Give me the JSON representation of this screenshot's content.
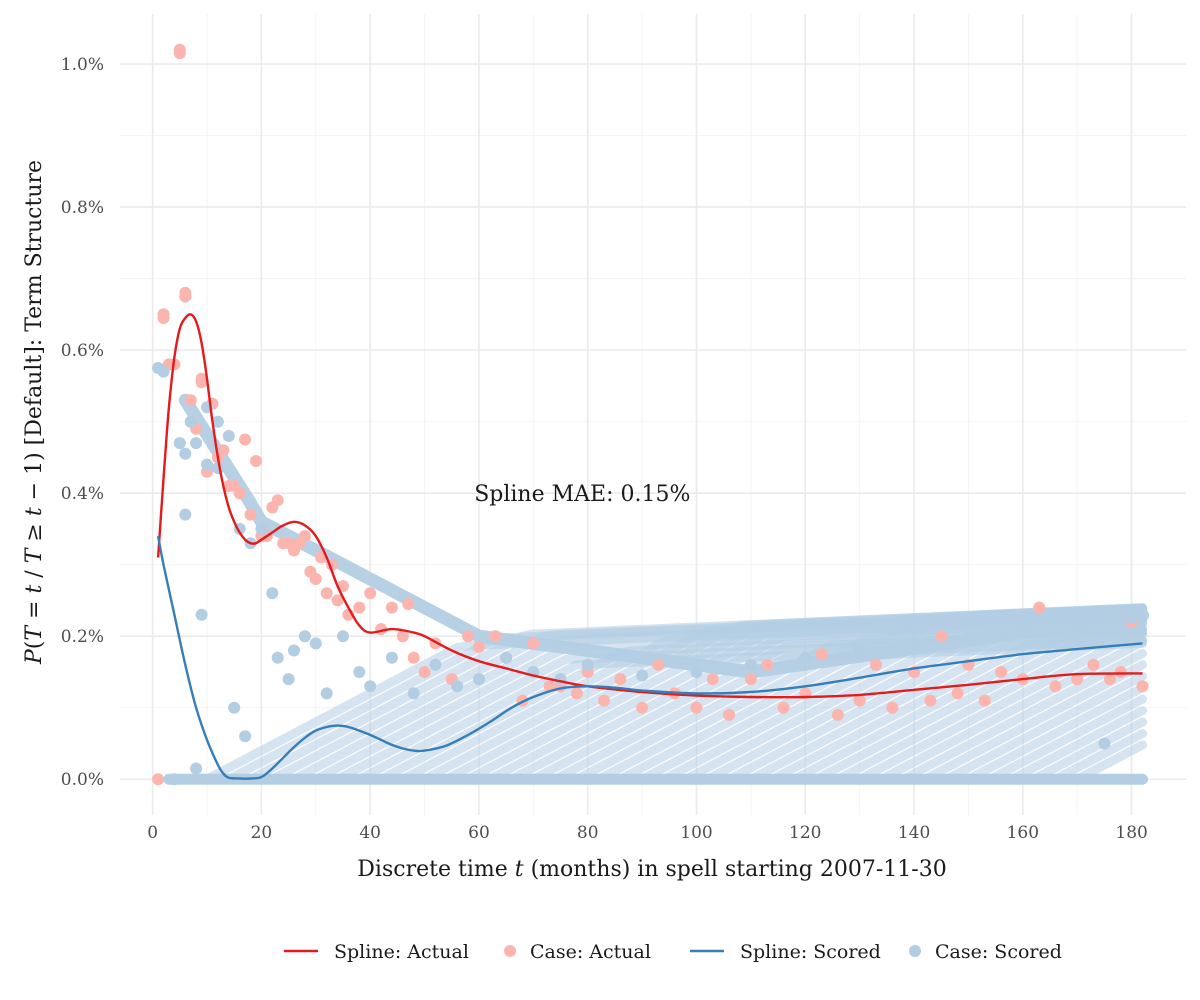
{
  "chart_data": {
    "type": "scatter",
    "xlabel": "Discrete time t (months) in spell starting 2007-11-30",
    "xlabel_parts": [
      "Discrete time ",
      "t",
      " (months) in spell starting 2007-11-30"
    ],
    "ylabel": "P(T = t / T ≥ t − 1) [Default]: Term Structure",
    "ylabel_parts": [
      "P",
      "(",
      "T",
      " = ",
      "t",
      " / ",
      "T",
      " ≥ ",
      "t",
      " − 1",
      ")",
      " [Default]: Term Structure"
    ],
    "annotation": {
      "text": "Spline MAE: 0.15%",
      "x": 79,
      "y": 0.4
    },
    "xlim": [
      -6,
      190
    ],
    "ylim": [
      -0.05,
      1.07
    ],
    "x_ticks": [
      0,
      20,
      40,
      60,
      80,
      100,
      120,
      140,
      160,
      180
    ],
    "x_tick_labels": [
      "0",
      "20",
      "40",
      "60",
      "80",
      "100",
      "120",
      "140",
      "160",
      "180"
    ],
    "y_ticks": [
      0.0,
      0.2,
      0.4,
      0.6,
      0.8,
      1.0
    ],
    "y_tick_labels": [
      "0.0%",
      "0.2%",
      "0.4%",
      "0.6%",
      "0.8%",
      "1.0%"
    ],
    "grid": true,
    "legend_position": "bottom",
    "colors": {
      "spline_actual": "#e41a1c",
      "case_actual": "#fbb4ae",
      "spline_scored": "#377eb8",
      "case_scored": "#b3cde3"
    },
    "legend": [
      {
        "label": "Spline: Actual",
        "kind": "line",
        "color": "#e41a1c"
      },
      {
        "label": "Case: Actual",
        "kind": "point",
        "color": "#fbb4ae"
      },
      {
        "label": "Spline: Scored",
        "kind": "line",
        "color": "#377eb8"
      },
      {
        "label": "Case: Scored",
        "kind": "point",
        "color": "#b3cde3"
      }
    ],
    "series": [
      {
        "name": "Spline: Actual",
        "kind": "line",
        "color": "#e41a1c",
        "x": [
          1,
          2,
          3,
          4,
          5,
          6,
          7,
          8,
          9,
          10,
          11,
          12,
          13,
          14,
          15,
          16,
          17,
          18,
          19,
          20,
          22,
          24,
          26,
          28,
          30,
          32,
          34,
          36,
          38,
          40,
          44,
          48,
          50,
          55,
          60,
          65,
          70,
          75,
          80,
          90,
          100,
          110,
          120,
          130,
          140,
          150,
          160,
          170,
          182
        ],
        "y": [
          0.31,
          0.42,
          0.52,
          0.59,
          0.63,
          0.645,
          0.65,
          0.64,
          0.61,
          0.56,
          0.5,
          0.45,
          0.41,
          0.38,
          0.36,
          0.345,
          0.335,
          0.33,
          0.33,
          0.335,
          0.345,
          0.355,
          0.36,
          0.355,
          0.34,
          0.31,
          0.27,
          0.24,
          0.215,
          0.205,
          0.21,
          0.205,
          0.2,
          0.18,
          0.165,
          0.155,
          0.145,
          0.137,
          0.13,
          0.122,
          0.117,
          0.115,
          0.115,
          0.118,
          0.125,
          0.132,
          0.14,
          0.147,
          0.148
        ]
      },
      {
        "name": "Spline: Scored",
        "kind": "line",
        "color": "#377eb8",
        "x": [
          1,
          2,
          4,
          6,
          8,
          10,
          12,
          13,
          14,
          16,
          18,
          20,
          22,
          24,
          26,
          28,
          30,
          32,
          34,
          36,
          38,
          40,
          42,
          44,
          46,
          48,
          50,
          54,
          58,
          62,
          66,
          70,
          75,
          80,
          85,
          90,
          100,
          110,
          120,
          130,
          140,
          150,
          160,
          170,
          182
        ],
        "y": [
          0.34,
          0.3,
          0.23,
          0.16,
          0.1,
          0.055,
          0.02,
          0.008,
          0.002,
          0.001,
          0.001,
          0.003,
          0.015,
          0.03,
          0.045,
          0.058,
          0.068,
          0.073,
          0.075,
          0.073,
          0.068,
          0.062,
          0.055,
          0.048,
          0.043,
          0.04,
          0.04,
          0.047,
          0.062,
          0.08,
          0.1,
          0.115,
          0.127,
          0.13,
          0.128,
          0.124,
          0.12,
          0.122,
          0.13,
          0.142,
          0.155,
          0.165,
          0.175,
          0.182,
          0.19
        ]
      },
      {
        "name": "Case: Actual",
        "kind": "point",
        "color": "#fbb4ae",
        "x": [
          1,
          2,
          2,
          3,
          4,
          5,
          5,
          6,
          6,
          7,
          8,
          9,
          9,
          10,
          11,
          12,
          13,
          14,
          15,
          16,
          17,
          18,
          19,
          20,
          21,
          22,
          23,
          24,
          25,
          26,
          27,
          28,
          29,
          30,
          31,
          32,
          33,
          34,
          35,
          36,
          38,
          40,
          42,
          44,
          46,
          47,
          48,
          50,
          52,
          55,
          58,
          60,
          63,
          65,
          68,
          70,
          73,
          75,
          78,
          80,
          83,
          86,
          90,
          93,
          96,
          100,
          103,
          106,
          110,
          113,
          116,
          120,
          123,
          126,
          130,
          133,
          136,
          140,
          143,
          145,
          148,
          150,
          153,
          156,
          160,
          163,
          166,
          170,
          173,
          176,
          178,
          180,
          182
        ],
        "y": [
          0.0,
          0.65,
          0.645,
          0.58,
          0.58,
          1.02,
          1.015,
          0.68,
          0.675,
          0.53,
          0.49,
          0.56,
          0.555,
          0.43,
          0.525,
          0.45,
          0.46,
          0.41,
          0.41,
          0.4,
          0.475,
          0.37,
          0.445,
          0.34,
          0.34,
          0.38,
          0.39,
          0.33,
          0.33,
          0.32,
          0.33,
          0.34,
          0.29,
          0.28,
          0.31,
          0.26,
          0.3,
          0.25,
          0.27,
          0.23,
          0.24,
          0.26,
          0.21,
          0.24,
          0.2,
          0.245,
          0.17,
          0.15,
          0.19,
          0.14,
          0.2,
          0.185,
          0.2,
          0.17,
          0.11,
          0.19,
          0.13,
          0.13,
          0.12,
          0.15,
          0.11,
          0.14,
          0.1,
          0.16,
          0.12,
          0.1,
          0.14,
          0.09,
          0.14,
          0.16,
          0.1,
          0.12,
          0.175,
          0.09,
          0.11,
          0.16,
          0.1,
          0.15,
          0.11,
          0.2,
          0.12,
          0.16,
          0.11,
          0.15,
          0.14,
          0.24,
          0.13,
          0.14,
          0.16,
          0.14,
          0.15,
          0.22,
          0.13
        ]
      },
      {
        "name": "Case: Scored",
        "kind": "point",
        "color": "#b3cde3",
        "x": [
          1,
          2,
          4,
          5,
          6,
          6,
          7,
          8,
          8,
          9,
          10,
          10,
          12,
          12,
          14,
          15,
          16,
          17,
          18,
          20,
          22,
          23,
          25,
          26,
          28,
          30,
          32,
          35,
          38,
          40,
          44,
          48,
          52,
          56,
          60,
          65,
          70,
          75,
          80,
          90,
          100,
          110,
          120,
          130,
          140,
          150,
          160,
          170,
          175,
          180
        ],
        "y": [
          0.575,
          0.57,
          0.0,
          0.47,
          0.37,
          0.455,
          0.5,
          0.47,
          0.015,
          0.23,
          0.52,
          0.44,
          0.5,
          0.435,
          0.48,
          0.1,
          0.35,
          0.06,
          0.33,
          0.35,
          0.26,
          0.17,
          0.14,
          0.18,
          0.2,
          0.19,
          0.12,
          0.2,
          0.15,
          0.13,
          0.17,
          0.12,
          0.16,
          0.13,
          0.14,
          0.17,
          0.15,
          0.14,
          0.16,
          0.145,
          0.15,
          0.16,
          0.17,
          0.18,
          0.19,
          0.2,
          0.21,
          0.215,
          0.05,
          0.225
        ]
      }
    ]
  }
}
